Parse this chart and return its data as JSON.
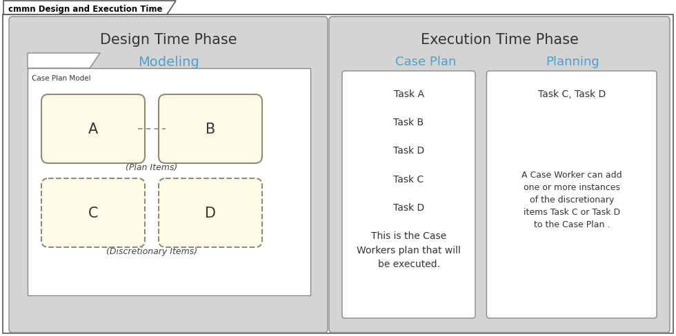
{
  "title": "cmmn Design and Execution Time",
  "bg_color": "#ffffff",
  "panel_bg": "#d4d4d4",
  "inner_bg": "#ffffff",
  "task_fill": "#fdfbe8",
  "task_border": "#8c8c6e",
  "border_color": "#888888",
  "dark_border": "#555555",
  "cyan_color": "#4e9fce",
  "design_title": "Design Time Phase",
  "design_subtitle": "Modeling",
  "execution_title": "Execution Time Phase",
  "case_plan_label": "Case Plan",
  "planning_label": "Planning",
  "case_plan_model_label": "Case Plan Model",
  "plan_items_label": "(Plan Items)",
  "discretionary_label": "(Discretionary Items)",
  "task_a_label": "A",
  "task_b_label": "B",
  "task_c_label": "C",
  "task_d_label": "D",
  "cp_text_lines": [
    "Task A",
    "",
    "Task B",
    "",
    "Task D",
    "",
    "Task C",
    "",
    "Task D",
    "",
    "This is the Case\nWorkers plan that will\nbe executed."
  ],
  "pl_text_top": "Task C, Task D",
  "pl_text_bottom": "A Case Worker can add\none or more instances\nof the discretionary\nitems Task C or Task D\nto the Case Plan ."
}
